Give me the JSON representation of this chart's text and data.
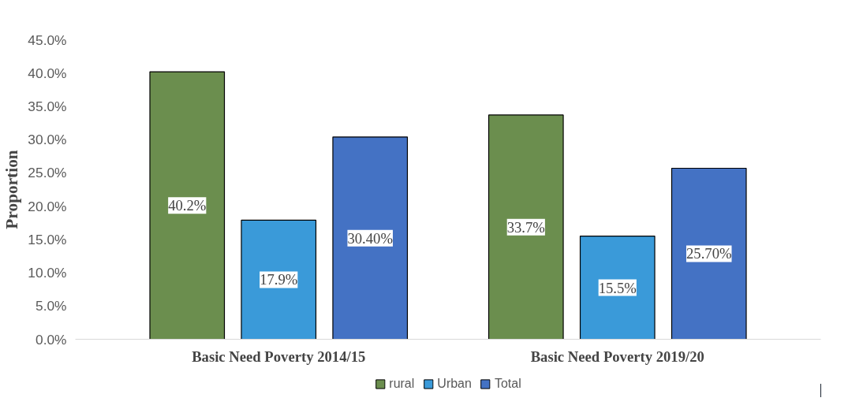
{
  "chart_data": {
    "type": "bar",
    "ylabel": "Proportion",
    "categories": [
      "Basic Need Poverty 2014/15",
      "Basic Need Poverty 2019/20"
    ],
    "series": [
      {
        "name": "rural",
        "color": "#6b8e4e",
        "values": [
          40.2,
          33.7
        ],
        "value_labels": [
          "40.2%",
          "33.7%"
        ]
      },
      {
        "name": "Urban",
        "color": "#3a9ad9",
        "values": [
          17.9,
          15.5
        ],
        "value_labels": [
          "17.9%",
          "15.5%"
        ]
      },
      {
        "name": "Total",
        "color": "#4472c4",
        "values": [
          30.4,
          25.7
        ],
        "value_labels": [
          "30.40%",
          "25.70%"
        ]
      }
    ],
    "ylim": [
      0,
      45
    ],
    "yticks": [
      {
        "value": 0,
        "label": "0.0%"
      },
      {
        "value": 5,
        "label": "5.0%"
      },
      {
        "value": 10,
        "label": "10.0%"
      },
      {
        "value": 15,
        "label": "15.0%"
      },
      {
        "value": 20,
        "label": "20.0%"
      },
      {
        "value": 25,
        "label": "25.0%"
      },
      {
        "value": 30,
        "label": "30.0%"
      },
      {
        "value": 35,
        "label": "35.0%"
      },
      {
        "value": 40,
        "label": "40.0%"
      },
      {
        "value": 45,
        "label": "45.0%"
      }
    ],
    "grid": false,
    "legend": "bottom"
  }
}
